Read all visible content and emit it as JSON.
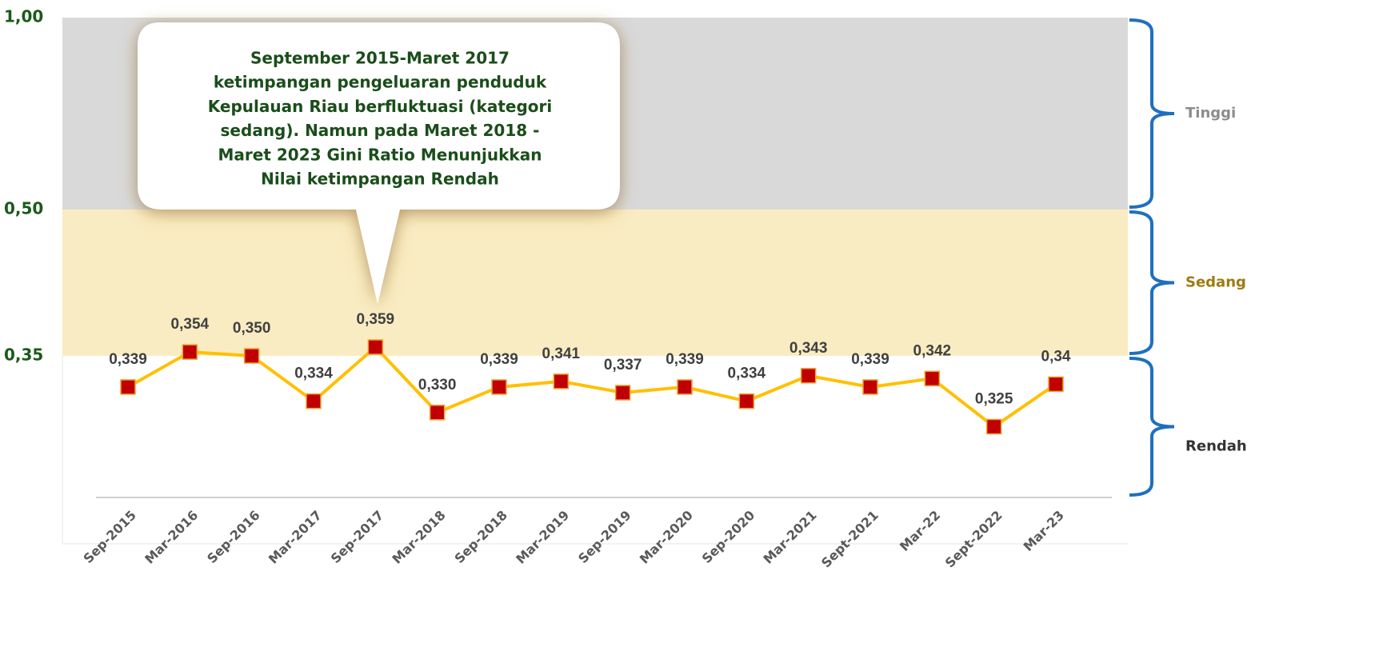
{
  "chart_data": {
    "type": "line",
    "categories": [
      "Sep-2015",
      "Mar-2016",
      "Sep-2016",
      "Mar-2017",
      "Sep-2017",
      "Mar-2018",
      "Sep-2018",
      "Mar-2019",
      "Sep-2019",
      "Mar-2020",
      "Sep-2020",
      "Mar-2021",
      "Sept-2021",
      "Mar-22",
      "Sept-2022",
      "Mar-23"
    ],
    "series": [
      {
        "color": "#ffc000",
        "marker_color": "#c00000",
        "values": [
          0.339,
          0.354,
          0.35,
          0.334,
          0.359,
          0.33,
          0.339,
          0.341,
          0.337,
          0.339,
          0.334,
          0.343,
          0.339,
          0.342,
          0.325,
          0.34
        ],
        "value_labels": [
          "0,339",
          "0,354",
          "0,350",
          "0,334",
          "0,359",
          "0,330",
          "0,339",
          "0,341",
          "0,337",
          "0,339",
          "0,334",
          "0,343",
          "0,339",
          "0,342",
          "0,325",
          "0,34"
        ]
      }
    ],
    "ylim": [
      0.3,
      1
    ],
    "yticks": [
      {
        "value": 0.35,
        "label": "0,35"
      },
      {
        "value": 0.5,
        "label": "0,50"
      },
      {
        "value": 1,
        "label": "1,00"
      }
    ],
    "bands": [
      {
        "label": "Tinggi",
        "from": 0.5,
        "to": 1,
        "color": "#d9d9d9",
        "label_color": "#8c8c8c"
      },
      {
        "label": "Sedang",
        "from": 0.35,
        "to": 0.5,
        "color": "#faecc2",
        "label_color": "#9c7c10"
      },
      {
        "label": "Rendah",
        "from": 0.3,
        "to": 0.35,
        "color": "#ffffff",
        "label_color": "#333333"
      }
    ],
    "annotation": [
      "September 2015-Maret 2017",
      "ketimpangan pengeluaran penduduk",
      "Kepulauan Riau berfluktuasi (kategori",
      "sedang). Namun pada Maret 2018 -",
      "Maret 2023 Gini Ratio Menunjukkan",
      "Nilai ketimpangan Rendah"
    ]
  }
}
